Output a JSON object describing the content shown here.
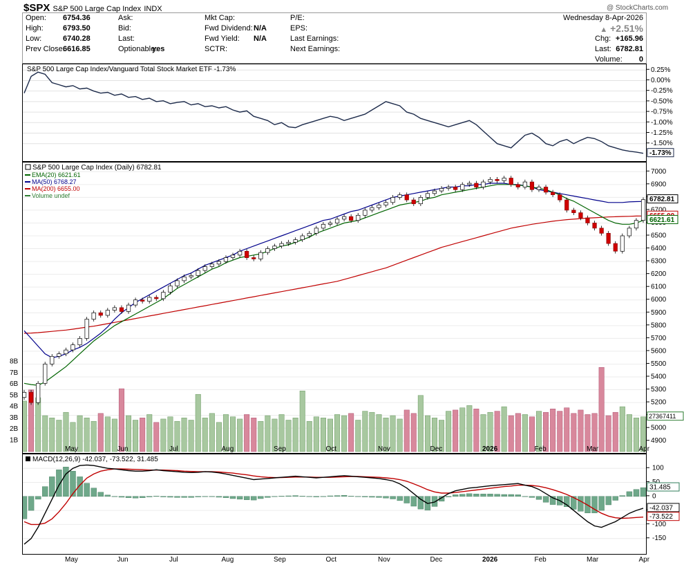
{
  "header": {
    "symbol": "$SPX",
    "name": "S&P 500 Large Cap Index",
    "exchange": "INDX",
    "watermark": "@ StockCharts.com",
    "date": "Wednesday  8-Apr-2026",
    "pct_change": "+2.51%",
    "fields": [
      {
        "label": "Open:",
        "value": "6754.36"
      },
      {
        "label": "High:",
        "value": "6793.50"
      },
      {
        "label": "Low:",
        "value": "6740.28"
      },
      {
        "label": "Prev Close:",
        "value": "6616.85"
      },
      {
        "label": "Ask:",
        "value": ""
      },
      {
        "label": "Bid:",
        "value": ""
      },
      {
        "label": "Last:",
        "value": ""
      },
      {
        "label": "Optionable:",
        "value": "yes"
      },
      {
        "label": "Mkt Cap:",
        "value": ""
      },
      {
        "label": "Fwd Dividend:",
        "value": "N/A"
      },
      {
        "label": "Fwd Yield:",
        "value": "N/A"
      },
      {
        "label": "SCTR:",
        "value": ""
      },
      {
        "label": "P/E:",
        "value": ""
      },
      {
        "label": "EPS:",
        "value": ""
      },
      {
        "label": "Last Earnings:",
        "value": ""
      },
      {
        "label": "Next Earnings:",
        "value": ""
      }
    ],
    "right_fields": [
      {
        "label": "Chg:",
        "value": "+165.96"
      },
      {
        "label": "Last:",
        "value": "6782.81"
      },
      {
        "label": "Volume:",
        "value": "0"
      }
    ]
  },
  "chart_data": [
    {
      "type": "line",
      "title": "S&P 500 Large Cap Index/Vanguard Total Stock Market ETF -1.73%",
      "ylabel_unit": "%",
      "ylim": [
        -1.85,
        0.32
      ],
      "yticks": [
        "0.25%",
        "0.00%",
        "-0.25%",
        "-0.50%",
        "-0.75%",
        "-1.00%",
        "-1.25%",
        "-1.50%"
      ],
      "ytick_values": [
        0.25,
        0.0,
        -0.25,
        -0.5,
        -0.75,
        -1.0,
        -1.25,
        -1.5
      ],
      "last_label": "-1.73%",
      "last_value": -1.73,
      "color": "#1c2a4a",
      "values": [
        -0.3,
        0.1,
        0.2,
        0.15,
        -0.05,
        -0.1,
        -0.15,
        -0.12,
        -0.2,
        -0.18,
        -0.25,
        -0.3,
        -0.28,
        -0.35,
        -0.32,
        -0.4,
        -0.38,
        -0.45,
        -0.42,
        -0.5,
        -0.48,
        -0.55,
        -0.52,
        -0.5,
        -0.58,
        -0.55,
        -0.62,
        -0.6,
        -0.65,
        -0.62,
        -0.7,
        -0.75,
        -0.72,
        -0.85,
        -0.9,
        -0.95,
        -1.05,
        -1.0,
        -1.1,
        -1.12,
        -1.05,
        -1.0,
        -0.95,
        -0.9,
        -0.85,
        -0.88,
        -0.95,
        -0.9,
        -0.85,
        -0.8,
        -0.7,
        -0.6,
        -0.5,
        -0.55,
        -0.6,
        -0.75,
        -0.8,
        -0.9,
        -0.95,
        -1.0,
        -1.05,
        -1.1,
        -1.05,
        -1.0,
        -0.95,
        -1.05,
        -1.2,
        -1.35,
        -1.5,
        -1.55,
        -1.6,
        -1.45,
        -1.3,
        -1.25,
        -1.35,
        -1.5,
        -1.55,
        -1.45,
        -1.4,
        -1.5,
        -1.42,
        -1.35,
        -1.38,
        -1.45,
        -1.55,
        -1.6,
        -1.65,
        -1.68,
        -1.7,
        -1.73
      ]
    },
    {
      "type": "candlestick",
      "title": "S&P 500 Large Cap Index (Daily) 6782.81",
      "legend": [
        {
          "name": "EMA(20) 6621.61",
          "color": "#006400"
        },
        {
          "name": "MA(50) 6768.27",
          "color": "#00008b"
        },
        {
          "name": "MA(200) 6655.00",
          "color": "#c00000"
        },
        {
          "name": "Volume undef",
          "color": "#2e7d32"
        }
      ],
      "ylim": [
        4850,
        7050
      ],
      "yticks": [
        7000,
        6900,
        6800,
        6700,
        6600,
        6500,
        6400,
        6300,
        6200,
        6100,
        6000,
        5900,
        5800,
        5700,
        5600,
        5500,
        5400,
        5300,
        5200,
        5100,
        5000,
        4900
      ],
      "last_price": 6782.81,
      "ema20_last": 6621.61,
      "ma200_last": 6655.0,
      "volume_last": "27367411",
      "volume_yticks": [
        "8B",
        "7B",
        "6B",
        "5B",
        "4B",
        "3B",
        "2B",
        "1B"
      ],
      "volume_tick_values": [
        8,
        7,
        6,
        5,
        4,
        3,
        2,
        1
      ],
      "vol_max": 8.5,
      "x_labels": [
        "May",
        "Jun",
        "Jul",
        "Aug",
        "Sep",
        "Oct",
        "Nov",
        "Dec",
        "2026",
        "Feb",
        "Mar",
        "Apr"
      ],
      "x_label_bold": "2026",
      "close": [
        5280,
        5200,
        5350,
        5500,
        5560,
        5580,
        5610,
        5650,
        5700,
        5850,
        5900,
        5880,
        5920,
        5940,
        5910,
        5960,
        6000,
        5990,
        6020,
        6010,
        6060,
        6110,
        6150,
        6180,
        6190,
        6230,
        6260,
        6280,
        6300,
        6330,
        6350,
        6380,
        6330,
        6320,
        6370,
        6400,
        6420,
        6440,
        6450,
        6470,
        6500,
        6520,
        6560,
        6590,
        6600,
        6630,
        6650,
        6620,
        6660,
        6700,
        6720,
        6740,
        6760,
        6800,
        6820,
        6780,
        6750,
        6800,
        6830,
        6850,
        6870,
        6880,
        6860,
        6900,
        6910,
        6880,
        6920,
        6940,
        6930,
        6950,
        6900,
        6880,
        6920,
        6860,
        6880,
        6840,
        6820,
        6780,
        6700,
        6680,
        6640,
        6600,
        6560,
        6520,
        6440,
        6380,
        6500,
        6560,
        6620,
        6782
      ],
      "ma20": [
        5350,
        5340,
        5335,
        5360,
        5400,
        5440,
        5480,
        5530,
        5580,
        5630,
        5680,
        5720,
        5760,
        5800,
        5830,
        5860,
        5890,
        5920,
        5950,
        5980,
        6010,
        6050,
        6090,
        6120,
        6150,
        6180,
        6210,
        6240,
        6260,
        6290,
        6310,
        6330,
        6340,
        6350,
        6360,
        6380,
        6400,
        6420,
        6430,
        6450,
        6470,
        6490,
        6520,
        6540,
        6560,
        6580,
        6600,
        6610,
        6620,
        6640,
        6660,
        6680,
        6700,
        6720,
        6740,
        6750,
        6760,
        6770,
        6790,
        6800,
        6820,
        6830,
        6840,
        6850,
        6860,
        6870,
        6880,
        6890,
        6900,
        6900,
        6900,
        6895,
        6890,
        6880,
        6870,
        6860,
        6840,
        6820,
        6790,
        6770,
        6740,
        6710,
        6680,
        6650,
        6620,
        6600,
        6590,
        6590,
        6600,
        6621
      ],
      "ma50": [
        5760,
        5700,
        5640,
        5580,
        5550,
        5560,
        5580,
        5610,
        5630,
        5660,
        5700,
        5740,
        5790,
        5850,
        5900,
        5940,
        5980,
        6010,
        6040,
        6070,
        6100,
        6130,
        6160,
        6190,
        6210,
        6240,
        6270,
        6290,
        6310,
        6330,
        6350,
        6380,
        6400,
        6420,
        6440,
        6460,
        6480,
        6500,
        6520,
        6540,
        6560,
        6580,
        6600,
        6620,
        6630,
        6650,
        6670,
        6690,
        6700,
        6720,
        6740,
        6760,
        6780,
        6800,
        6810,
        6820,
        6830,
        6840,
        6850,
        6860,
        6870,
        6880,
        6880,
        6890,
        6890,
        6900,
        6900,
        6910,
        6910,
        6910,
        6900,
        6900,
        6890,
        6880,
        6860,
        6850,
        6840,
        6830,
        6820,
        6810,
        6800,
        6790,
        6780,
        6770,
        6760,
        6760,
        6760,
        6765,
        6767,
        6768
      ],
      "ma200": [
        5740,
        5742,
        5745,
        5750,
        5755,
        5760,
        5765,
        5772,
        5780,
        5788,
        5795,
        5805,
        5815,
        5825,
        5835,
        5845,
        5855,
        5865,
        5875,
        5885,
        5895,
        5905,
        5915,
        5925,
        5935,
        5945,
        5955,
        5965,
        5975,
        5985,
        5995,
        6005,
        6015,
        6025,
        6035,
        6045,
        6055,
        6065,
        6075,
        6085,
        6095,
        6105,
        6115,
        6125,
        6135,
        6145,
        6160,
        6175,
        6190,
        6205,
        6220,
        6235,
        6250,
        6270,
        6290,
        6310,
        6330,
        6350,
        6370,
        6390,
        6410,
        6425,
        6440,
        6455,
        6470,
        6485,
        6500,
        6515,
        6530,
        6545,
        6560,
        6570,
        6580,
        6590,
        6598,
        6606,
        6614,
        6620,
        6626,
        6630,
        6634,
        6638,
        6641,
        6644,
        6647,
        6649,
        6651,
        6652,
        6654,
        6655
      ],
      "volume": [
        4.5,
        5.5,
        4.8,
        3.2,
        3.0,
        2.8,
        3.5,
        2.6,
        3.2,
        3.0,
        2.7,
        3.4,
        3.1,
        2.9,
        5.6,
        3.2,
        2.8,
        3.0,
        3.3,
        2.6,
        2.9,
        3.1,
        2.7,
        3.0,
        2.8,
        5.1,
        3.0,
        3.4,
        2.6,
        3.3,
        3.1,
        2.9,
        3.3,
        3.0,
        2.7,
        3.2,
        2.9,
        3.3,
        2.8,
        3.0,
        5.4,
        2.7,
        3.1,
        3.0,
        2.9,
        3.3,
        3.2,
        3.4,
        2.8,
        3.6,
        3.5,
        3.3,
        3.0,
        3.2,
        2.9,
        3.7,
        3.4,
        5.0,
        3.2,
        3.0,
        2.8,
        3.6,
        3.7,
        3.9,
        4.1,
        3.8,
        3.3,
        3.5,
        3.6,
        4.0,
        3.2,
        3.4,
        3.3,
        3.1,
        3.6,
        3.5,
        3.8,
        3.6,
        3.9,
        3.4,
        3.7,
        3.3,
        3.4,
        7.5,
        3.2,
        3.5,
        4.0,
        3.3,
        3.0,
        3.1
      ]
    },
    {
      "type": "line",
      "title": "MACD(12,26,9) -42.037, -73.522, 31.485",
      "ylim": [
        -195,
        140
      ],
      "yticks": [
        100,
        50,
        0,
        -50,
        -100,
        -150
      ],
      "ytick_labels": [
        "100",
        "50",
        "0",
        "-50",
        "-100",
        "-150"
      ],
      "last_labels": [
        {
          "text": "31.485",
          "value": 31.485
        },
        {
          "text": "-42.037",
          "value": -42.037
        },
        {
          "text": "-73.522",
          "value": -73.522
        }
      ],
      "series": [
        {
          "name": "MACD",
          "color": "#000000",
          "values": [
            -170,
            -150,
            -110,
            -60,
            -10,
            40,
            80,
            100,
            110,
            112,
            110,
            105,
            100,
            98,
            95,
            92,
            90,
            90,
            92,
            95,
            92,
            90,
            88,
            86,
            85,
            86,
            88,
            87,
            84,
            80,
            75,
            70,
            65,
            60,
            62,
            64,
            66,
            68,
            70,
            72,
            70,
            68,
            66,
            68,
            70,
            72,
            74,
            72,
            70,
            68,
            66,
            64,
            60,
            55,
            45,
            30,
            10,
            -10,
            -25,
            -20,
            -5,
            10,
            20,
            25,
            30,
            32,
            35,
            38,
            40,
            42,
            44,
            46,
            40,
            35,
            25,
            10,
            -5,
            -15,
            -30,
            -50,
            -70,
            -90,
            -105,
            -110,
            -100,
            -90,
            -75,
            -60,
            -50,
            -42
          ]
        },
        {
          "name": "Signal",
          "color": "#c00000",
          "values": [
            -90,
            -100,
            -100,
            -95,
            -80,
            -55,
            -25,
            10,
            40,
            65,
            80,
            90,
            95,
            98,
            98,
            97,
            96,
            95,
            94,
            94,
            94,
            93,
            92,
            90,
            89,
            88,
            88,
            88,
            87,
            85,
            83,
            80,
            77,
            73,
            70,
            68,
            67,
            67,
            68,
            69,
            69,
            69,
            68,
            68,
            68,
            69,
            70,
            71,
            71,
            70,
            69,
            68,
            66,
            64,
            60,
            54,
            45,
            35,
            24,
            16,
            12,
            12,
            14,
            17,
            20,
            23,
            26,
            29,
            32,
            35,
            37,
            40,
            40,
            39,
            36,
            31,
            24,
            16,
            7,
            -4,
            -17,
            -31,
            -46,
            -60,
            -70,
            -76,
            -78,
            -77,
            -75,
            -73.5
          ]
        },
        {
          "name": "Histogram",
          "color": "#2e7d5a",
          "values": [
            -80,
            -50,
            -10,
            35,
            70,
            95,
            105,
            90,
            70,
            47,
            30,
            15,
            5,
            0,
            -3,
            -5,
            -6,
            -5,
            -2,
            1,
            -2,
            -3,
            -4,
            -4,
            -4,
            -2,
            0,
            -1,
            -3,
            -5,
            -8,
            -10,
            -12,
            -13,
            -8,
            -4,
            -1,
            1,
            2,
            3,
            1,
            -1,
            -2,
            0,
            2,
            3,
            4,
            1,
            -1,
            -2,
            -3,
            -4,
            -6,
            -9,
            -15,
            -24,
            -35,
            -45,
            -49,
            -36,
            -17,
            -2,
            6,
            8,
            10,
            9,
            9,
            9,
            8,
            7,
            7,
            6,
            0,
            -4,
            -11,
            -21,
            -29,
            -31,
            -37,
            -46,
            -53,
            -59,
            -59,
            -50,
            -30,
            -14,
            3,
            17,
            25,
            31.485
          ]
        }
      ],
      "x_labels": [
        "May",
        "Jun",
        "Jul",
        "Aug",
        "Sep",
        "Oct",
        "Nov",
        "Dec",
        "2026",
        "Feb",
        "Mar",
        "Apr"
      ]
    }
  ]
}
